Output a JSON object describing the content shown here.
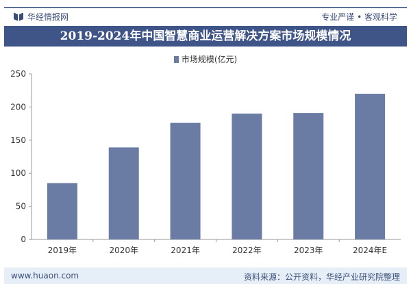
{
  "header": {
    "brand": "华经情报网",
    "slogan": "专业严谨 • 客观科学",
    "title": "2019-2024年中国智慧商业运营解决方案市场规模情况"
  },
  "footer": {
    "url": "www.huaon.com",
    "source": "资料来源：公开资料，华经产业研究院整理"
  },
  "chart_data": {
    "type": "bar",
    "title": "2019-2024年中国智慧商业运营解决方案市场规模情况",
    "categories": [
      "2019年",
      "2020年",
      "2021年",
      "2022年",
      "2023年",
      "2024年E"
    ],
    "series": [
      {
        "name": "市场规模(亿元)",
        "values": [
          85,
          139,
          176,
          190,
          191,
          220
        ],
        "color": "#6a7ca3"
      }
    ],
    "yticks": [
      0,
      50,
      100,
      150,
      200,
      250
    ],
    "ylim": [
      0,
      250
    ],
    "grid": false,
    "legend": "top"
  }
}
